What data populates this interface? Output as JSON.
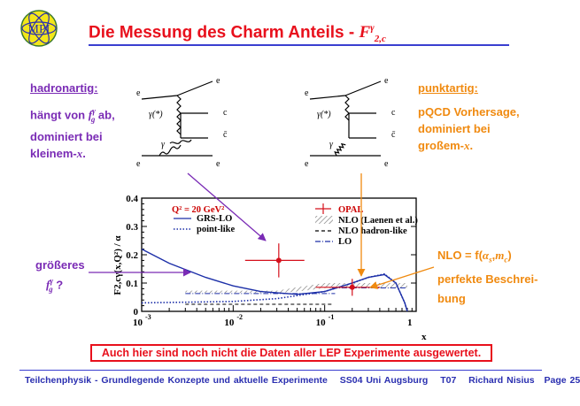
{
  "header": {
    "logo_text": "MPI",
    "title": "Die Messung des Charm Anteils - ",
    "title_symbol": "F",
    "title_sup": "γ",
    "title_sub": "2,c"
  },
  "left_note": {
    "heading": "hadronartig:",
    "line1": "hängt von ",
    "line1_sym": "f",
    "line1_sup": "γ",
    "line1_sub": "g",
    "line1_end": " ab,",
    "line2": "dominiert bei",
    "line3": "kleinem-",
    "line3_sym": "x",
    "line3_end": "."
  },
  "right_note": {
    "heading": "punktartig:",
    "line1": "pQCD Vorhersage,",
    "line2": "dominiert bei",
    "line3": "großem-",
    "line3_sym": "x",
    "line3_end": "."
  },
  "diagram_left": {
    "e_in": "e",
    "e_out": "e",
    "e_bottom_left": "e",
    "e_bottom_right": "e",
    "photon_virtual": "γ(*)",
    "photon": "γ",
    "c": "c",
    "cbar": "c̄"
  },
  "diagram_right": {
    "e_in": "e",
    "e_out": "e",
    "e_bottom_left": "e",
    "e_bottom_right": "e",
    "photon_virtual": "γ(*)",
    "photon": "γ",
    "c": "c",
    "cbar": "c̄"
  },
  "side_question": {
    "line1": "größeres",
    "sym": "f",
    "sup": "γ",
    "sub": "g",
    "end": " ?"
  },
  "nlo_note": {
    "line1": "NLO = f(",
    "alpha": "α",
    "alpha_sub": "s",
    "sep": ",",
    "m": "m",
    "m_sub": "c",
    "close": ")",
    "line2": "perfekte Beschrei-",
    "line3": "bung"
  },
  "chart_data": {
    "type": "line",
    "ylabel": "F2,cγ(x,Q²) / α",
    "xlabel": "x",
    "x_scale": "log",
    "xlim": [
      0.001,
      1
    ],
    "ylim": [
      0,
      0.4
    ],
    "x_ticks": [
      {
        "base": "10",
        "exp": "-3"
      },
      {
        "base": "10",
        "exp": "-2"
      },
      {
        "base": "10",
        "exp": "-1"
      },
      {
        "base": "1",
        "exp": ""
      }
    ],
    "y_ticks": [
      "0",
      "0.1",
      "0.2",
      "0.3",
      "0.4"
    ],
    "q2_label": "Q² = 20 GeV²",
    "legend_left": [
      {
        "label": "GRS-LO",
        "style": "solid"
      },
      {
        "label": "point-like",
        "style": "dotted"
      }
    ],
    "legend_right": [
      {
        "label": "OPAL",
        "style": "marker"
      },
      {
        "label": "NLO (Laenen et al.)",
        "style": "hatched"
      },
      {
        "label": "NLO hadron-like",
        "style": "dashed"
      },
      {
        "label": "LO",
        "style": "dashdot"
      }
    ],
    "opal_points": [
      {
        "x": 0.0315,
        "y": 0.18,
        "x_low": 0.0135,
        "x_high": 0.06,
        "y_err": 0.06
      },
      {
        "x": 0.2,
        "y": 0.085,
        "x_low": 0.08,
        "x_high": 0.4,
        "y_err": 0.03
      }
    ],
    "series_grs_lo": [
      [
        0.001,
        0.22
      ],
      [
        0.002,
        0.17
      ],
      [
        0.005,
        0.12
      ],
      [
        0.01,
        0.09
      ],
      [
        0.02,
        0.07
      ],
      [
        0.05,
        0.06
      ],
      [
        0.1,
        0.07
      ],
      [
        0.2,
        0.1
      ],
      [
        0.3,
        0.12
      ],
      [
        0.45,
        0.13
      ],
      [
        0.6,
        0.1
      ],
      [
        0.75,
        0.03
      ],
      [
        0.8,
        0
      ]
    ],
    "series_point_like": [
      [
        0.001,
        0.03
      ],
      [
        0.01,
        0.035
      ],
      [
        0.03,
        0.045
      ],
      [
        0.1,
        0.07
      ],
      [
        0.2,
        0.1
      ],
      [
        0.3,
        0.12
      ],
      [
        0.45,
        0.132
      ],
      [
        0.6,
        0.1
      ],
      [
        0.75,
        0.03
      ],
      [
        0.8,
        0
      ]
    ],
    "hatched_band": [
      [
        0.003,
        0.073,
        0.065
      ],
      [
        0.03,
        0.073,
        0.065
      ],
      [
        0.05,
        0.085,
        0.07
      ],
      [
        0.1,
        0.1,
        0.082
      ],
      [
        0.8,
        0.1,
        0.082
      ]
    ],
    "dashed_hadron": [
      [
        0.003,
        0.025
      ],
      [
        0.12,
        0.025
      ]
    ],
    "dashdot_lo": [
      [
        0.003,
        0.063
      ],
      [
        0.13,
        0.063
      ]
    ],
    "lo_high": [
      [
        0.12,
        0.083
      ],
      [
        0.8,
        0.083
      ]
    ]
  },
  "boxed_note": "Auch hier sind noch nicht die Daten aller LEP Experimente ausgewertet.",
  "footer": {
    "course": "Teilchenphysik - Grundlegende Konzepte und aktuelle Experimente",
    "term": "SS04 Uni Augsburg",
    "code": "T07",
    "author": "Richard Nisius",
    "page": "Page 25"
  },
  "colors": {
    "title": "#e8101c",
    "purple": "#7a2bb5",
    "orange": "#f08a10",
    "blue": "#2a2fb0",
    "data_red": "#d5101c"
  }
}
